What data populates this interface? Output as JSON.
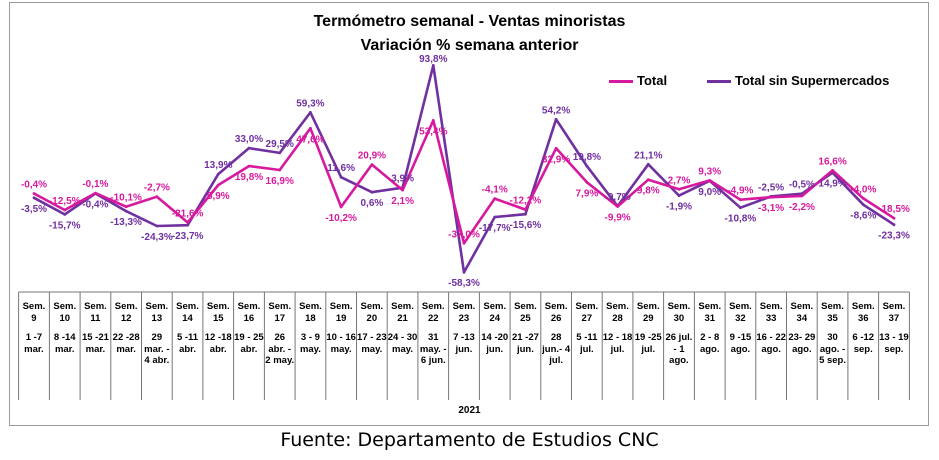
{
  "title_line1": "Termómetro semanal - Ventas minoristas",
  "title_line2": "Variación % semana anterior",
  "source": "Fuente: Departamento de Estudios CNC",
  "year_label": "2021",
  "chart_data": {
    "type": "line",
    "title": "Termómetro semanal - Ventas minoristas / Variación % semana anterior",
    "xlabel": "2021",
    "ylabel": "",
    "ylim": [
      -60,
      100
    ],
    "grid": false,
    "legend_position": "top-right",
    "categories": [
      {
        "week": "Sem. 9",
        "dates": "1 -7 mar."
      },
      {
        "week": "Sem. 10",
        "dates": "8 -14 mar."
      },
      {
        "week": "Sem. 11",
        "dates": "15 -21 mar."
      },
      {
        "week": "Sem. 12",
        "dates": "22 -28 mar."
      },
      {
        "week": "Sem. 13",
        "dates": "29 mar. - 4 abr."
      },
      {
        "week": "Sem. 14",
        "dates": "5 -11 abr."
      },
      {
        "week": "Sem. 15",
        "dates": "12 -18 abr."
      },
      {
        "week": "Sem. 16",
        "dates": "19 - 25 abr."
      },
      {
        "week": "Sem. 17",
        "dates": "26 abr. - 2 may."
      },
      {
        "week": "Sem. 18",
        "dates": "3 - 9 may."
      },
      {
        "week": "Sem. 19",
        "dates": "10 - 16 may."
      },
      {
        "week": "Sem. 20",
        "dates": "17 - 23 may."
      },
      {
        "week": "Sem. 21",
        "dates": "24 - 30 may."
      },
      {
        "week": "Sem. 22",
        "dates": "31 may. - 6 jun."
      },
      {
        "week": "Sem. 23",
        "dates": "7 -13 jun."
      },
      {
        "week": "Sem. 24",
        "dates": "14 -20 jun."
      },
      {
        "week": "Sem. 25",
        "dates": "21 -27 jun."
      },
      {
        "week": "Sem. 26",
        "dates": "28 jun.- 4 jul."
      },
      {
        "week": "Sem. 27",
        "dates": "5 -11 jul."
      },
      {
        "week": "Sem. 28",
        "dates": "12 - 18 jul."
      },
      {
        "week": "Sem. 29",
        "dates": "19 -25 jul."
      },
      {
        "week": "Sem. 30",
        "dates": "26 jul. - 1 ago."
      },
      {
        "week": "Sem. 31",
        "dates": "2 - 8 ago."
      },
      {
        "week": "Sem. 32",
        "dates": "9 -15 ago."
      },
      {
        "week": "Sem. 33",
        "dates": "16 - 22 ago."
      },
      {
        "week": "Sem. 34",
        "dates": "23- 29 ago."
      },
      {
        "week": "Sem. 35",
        "dates": "30 ago. - 5 sep."
      },
      {
        "week": "Sem. 36",
        "dates": "6 -12 sep."
      },
      {
        "week": "Sem. 37",
        "dates": "13 - 19 sep."
      }
    ],
    "series": [
      {
        "name": "Total",
        "color": "#d6199e",
        "values": [
          -0.4,
          -12.5,
          -0.1,
          -10.1,
          -2.7,
          -21.6,
          5.9,
          19.8,
          16.9,
          47.6,
          -10.2,
          20.9,
          2.1,
          53.4,
          -37.0,
          -4.1,
          -12.2,
          32.9,
          7.9,
          -9.9,
          9.8,
          2.7,
          9.3,
          -4.9,
          -3.1,
          -2.2,
          16.6,
          -4.0,
          -18.5
        ],
        "labels": [
          "-0,4%",
          "-12,5%",
          "-0,1%",
          "-10,1%",
          "-2,7%",
          "-21,6%",
          "5,9%",
          "19,8%",
          "16,9%",
          "47,6%",
          "-10,2%",
          "20,9%",
          "2,1%",
          "53,4%",
          "-37,0%",
          "-4,1%",
          "-12,2%",
          "32,9%",
          "7,9%",
          "-9,9%",
          "9,8%",
          "2,7%",
          "9,3%",
          "-4,9%",
          "-3,1%",
          "-2,2%",
          "16,6%",
          "-4,0%",
          "-18,5%"
        ]
      },
      {
        "name": "Total sin Supermercados",
        "color": "#7030a0",
        "values": [
          -3.5,
          -15.7,
          -0.4,
          -13.3,
          -24.3,
          -23.7,
          13.9,
          33.0,
          29.5,
          59.3,
          11.6,
          0.6,
          3.9,
          93.8,
          -58.3,
          -17.7,
          -15.6,
          54.2,
          19.8,
          -9.7,
          21.1,
          -1.9,
          9.0,
          -10.8,
          -2.5,
          -0.5,
          14.9,
          -8.6,
          -23.3
        ],
        "labels": [
          "-3,5%",
          "-15,7%",
          "-0,4%",
          "-13,3%",
          "-24,3%",
          "-23,7%",
          "13,9%",
          "33,0%",
          "29,5%",
          "59,3%",
          "11,6%",
          "0,6%",
          "3,9%",
          "93,8%",
          "-58,3%",
          "-17,7%",
          "-15,6%",
          "54,2%",
          "19,8%",
          "-9,7%",
          "21,1%",
          "-1,9%",
          "9,0%",
          "-10,8%",
          "-2,5%",
          "-0,5%",
          "14,9%",
          "-8,6%",
          "-23,3%"
        ]
      }
    ]
  }
}
